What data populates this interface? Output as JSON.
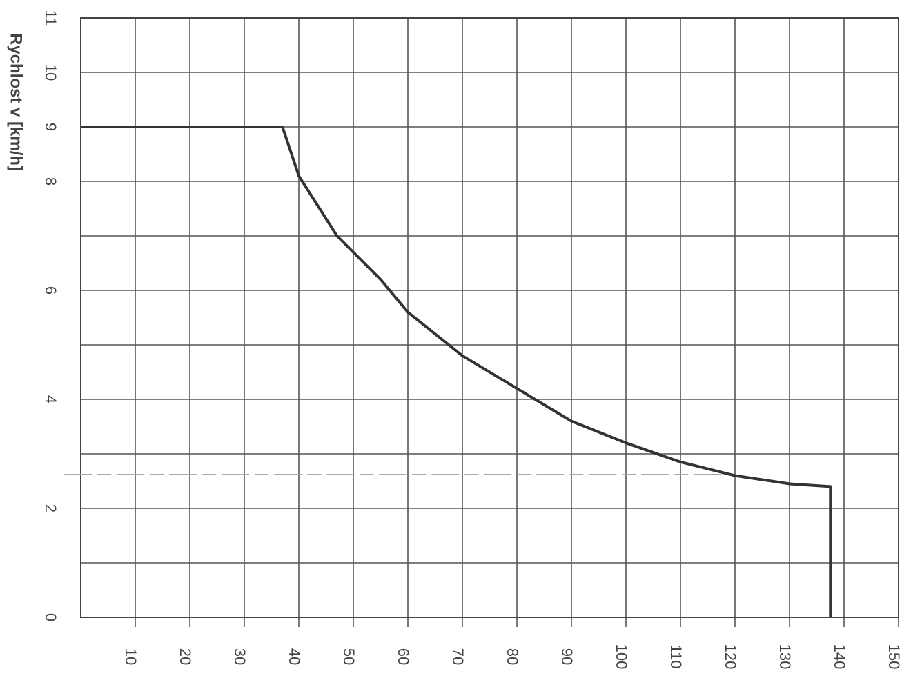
{
  "chart_data": {
    "type": "line",
    "ylabel": "Rychlost v [km/h]",
    "xlim": [
      0,
      150
    ],
    "xticks": [
      10,
      20,
      30,
      40,
      50,
      60,
      70,
      80,
      90,
      100,
      110,
      120,
      130,
      140,
      150
    ],
    "ylim": [
      0,
      11
    ],
    "yticks": [
      0,
      2,
      4,
      6,
      8,
      9,
      10,
      11
    ],
    "ygrid_unlabeled": [
      1,
      3,
      5,
      7
    ],
    "grid": true,
    "series": [
      {
        "color": "#333333",
        "dashed": false,
        "x": [
          0,
          37,
          40,
          47,
          55,
          60,
          70,
          80,
          90,
          100,
          110,
          120,
          130,
          137.5,
          137.5
        ],
        "values": [
          9,
          9,
          8.1,
          7,
          6.2,
          5.6,
          4.8,
          4.2,
          3.6,
          3.2,
          2.85,
          2.6,
          2.45,
          2.4,
          0
        ]
      },
      {
        "color": "#aaaaaa",
        "dashed": true,
        "x": [
          -3,
          118
        ],
        "values": [
          2.62,
          2.62
        ]
      }
    ]
  }
}
